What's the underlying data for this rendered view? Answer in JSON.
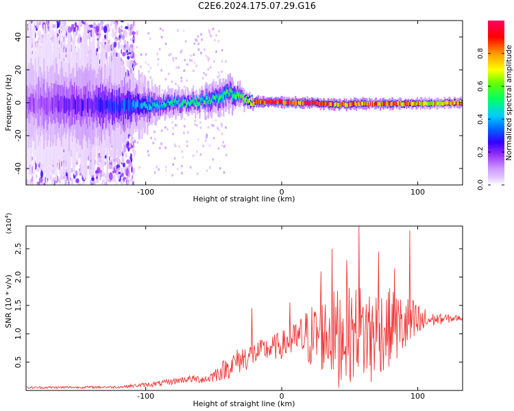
{
  "figure": {
    "title": "C2E6.2024.175.07.29.G16"
  },
  "chart_data": [
    {
      "type": "heatmap",
      "xlabel": "Height of straight line (km)",
      "ylabel": "Frequency (Hz)",
      "xlim": [
        -188,
        133
      ],
      "ylim": [
        -50,
        50
      ],
      "x_ticks": [
        -100,
        0,
        100
      ],
      "y_ticks": [
        -40,
        -20,
        0,
        20,
        40
      ],
      "grid": false,
      "colorbar": {
        "label": "Normalized spectral amplitude",
        "range": [
          0,
          1
        ],
        "ticks": [
          "0.0",
          "0.2",
          "0.4",
          "0.6",
          "0.8"
        ],
        "colors": [
          "#ffffff",
          "#e6ccff",
          "#cc99ff",
          "#9933ff",
          "#6600cc",
          "#0000ff",
          "#00ccff",
          "#00ff66",
          "#66ff00",
          "#ffff00",
          "#ff9900",
          "#ff0000",
          "#ff0066"
        ]
      },
      "ridge": {
        "description_points": [
          {
            "x": -188,
            "y": 0.0,
            "amp": 0.15,
            "spread": 40
          },
          {
            "x": -130,
            "y": -1.5,
            "amp": 0.25,
            "spread": 35
          },
          {
            "x": -110,
            "y": -2.0,
            "amp": 0.35,
            "spread": 20
          },
          {
            "x": -90,
            "y": -1.0,
            "amp": 0.45,
            "spread": 8
          },
          {
            "x": -70,
            "y": 0.5,
            "amp": 0.5,
            "spread": 7
          },
          {
            "x": -50,
            "y": 2.0,
            "amp": 0.5,
            "spread": 9
          },
          {
            "x": -38,
            "y": 6.0,
            "amp": 0.55,
            "spread": 10
          },
          {
            "x": -30,
            "y": 3.0,
            "amp": 0.55,
            "spread": 6
          },
          {
            "x": -20,
            "y": 0.5,
            "amp": 0.9,
            "spread": 3
          },
          {
            "x": 20,
            "y": 0.0,
            "amp": 0.9,
            "spread": 3
          },
          {
            "x": 40,
            "y": -1.0,
            "amp": 0.8,
            "spread": 3
          },
          {
            "x": 80,
            "y": -0.5,
            "amp": 0.85,
            "spread": 3
          },
          {
            "x": 110,
            "y": -0.5,
            "amp": 0.7,
            "spread": 3
          },
          {
            "x": 133,
            "y": 0.0,
            "amp": 0.8,
            "spread": 3
          }
        ]
      }
    },
    {
      "type": "line",
      "xlabel": "Height of straight line (km)",
      "ylabel": "SNR (10 * v/v)",
      "y_multiplier": "(x10^4)",
      "xlim": [
        -188,
        133
      ],
      "ylim": [
        0,
        2.9
      ],
      "x_ticks": [
        -100,
        0,
        100
      ],
      "y_ticks": [
        0.5,
        1.0,
        1.5,
        2.0,
        2.5
      ],
      "grid": false,
      "series": [
        {
          "color": "#ee3333",
          "envelope": [
            {
              "x": -188,
              "mean": 0.05,
              "amp": 0.02
            },
            {
              "x": -120,
              "mean": 0.06,
              "amp": 0.02
            },
            {
              "x": -90,
              "mean": 0.12,
              "amp": 0.05
            },
            {
              "x": -70,
              "mean": 0.2,
              "amp": 0.06
            },
            {
              "x": -55,
              "mean": 0.2,
              "amp": 0.08
            },
            {
              "x": -40,
              "mean": 0.4,
              "amp": 0.2
            },
            {
              "x": -30,
              "mean": 0.55,
              "amp": 0.25
            },
            {
              "x": -15,
              "mean": 0.7,
              "amp": 0.2
            },
            {
              "x": 0,
              "mean": 0.8,
              "amp": 0.25
            },
            {
              "x": 10,
              "mean": 0.9,
              "amp": 0.3
            },
            {
              "x": 20,
              "mean": 0.95,
              "amp": 0.55
            },
            {
              "x": 40,
              "mean": 1.0,
              "amp": 0.8
            },
            {
              "x": 60,
              "mean": 1.0,
              "amp": 0.9
            },
            {
              "x": 80,
              "mean": 1.1,
              "amp": 0.7
            },
            {
              "x": 95,
              "mean": 1.15,
              "amp": 0.5
            },
            {
              "x": 110,
              "mean": 1.25,
              "amp": 0.12
            },
            {
              "x": 133,
              "mean": 1.28,
              "amp": 0.04
            }
          ],
          "spikes": [
            {
              "x": 57,
              "y": 2.9
            },
            {
              "x": 94,
              "y": 2.82
            },
            {
              "x": 37,
              "y": 2.5
            },
            {
              "x": 71,
              "y": 2.45
            },
            {
              "x": 29,
              "y": 2.1
            },
            {
              "x": 48,
              "y": 2.3
            },
            {
              "x": 83,
              "y": 2.15
            },
            {
              "x": -22,
              "y": 1.45
            },
            {
              "x": 6,
              "y": 1.55
            },
            {
              "x": 66,
              "y": 0.15
            },
            {
              "x": 42,
              "y": 0.05
            }
          ]
        }
      ]
    }
  ]
}
